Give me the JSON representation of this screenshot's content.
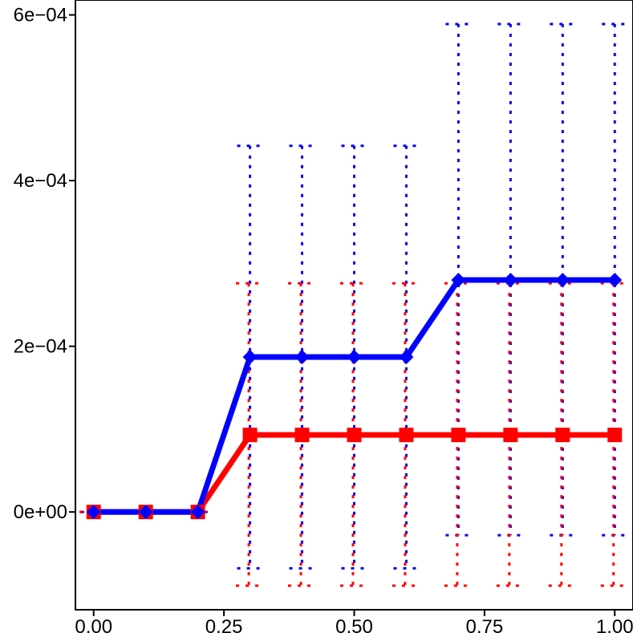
{
  "chart_data": {
    "type": "line",
    "title": "",
    "xlabel": "",
    "ylabel": "",
    "xlim": [
      -0.035,
      1.035
    ],
    "ylim": [
      -0.000118,
      0.000618
    ],
    "xticks": [
      {
        "value": 0.0,
        "label": "0.00"
      },
      {
        "value": 0.25,
        "label": "0.25"
      },
      {
        "value": 0.5,
        "label": "0.50"
      },
      {
        "value": 0.75,
        "label": "0.75"
      },
      {
        "value": 1.0,
        "label": "1.00"
      }
    ],
    "yticks": [
      {
        "value": 0.0,
        "label": "0e+00"
      },
      {
        "value": 0.0002,
        "label": "2e−04"
      },
      {
        "value": 0.0004,
        "label": "4e−04"
      },
      {
        "value": 0.0006,
        "label": "6e−04"
      }
    ],
    "x": [
      0.0,
      0.1,
      0.2,
      0.3,
      0.4,
      0.5,
      0.6,
      0.7,
      0.8,
      0.9,
      1.0
    ],
    "series": [
      {
        "color": "#0000ff",
        "marker": "diamond",
        "values": [
          0.0,
          0.0,
          0.0,
          0.000187,
          0.000187,
          0.000187,
          0.000187,
          0.00028,
          0.00028,
          0.00028,
          0.00028
        ],
        "upper": [
          0.0,
          0.0,
          0.0,
          0.000442,
          0.000442,
          0.000442,
          0.000442,
          0.000589,
          0.000589,
          0.000589,
          0.000589
        ],
        "lower": [
          0.0,
          0.0,
          0.0,
          -6.8e-05,
          -6.8e-05,
          -6.8e-05,
          -6.8e-05,
          -2.8e-05,
          -2.8e-05,
          -2.8e-05,
          -2.8e-05
        ]
      },
      {
        "color": "#ff0000",
        "marker": "square",
        "values": [
          0.0,
          0.0,
          0.0,
          9.3e-05,
          9.3e-05,
          9.3e-05,
          9.3e-05,
          9.3e-05,
          9.3e-05,
          9.3e-05,
          9.3e-05
        ],
        "upper": [
          0.0,
          0.0,
          0.0,
          0.000276,
          0.000276,
          0.000276,
          0.000276,
          0.000276,
          0.000276,
          0.000276,
          0.000276
        ],
        "lower": [
          0.0,
          0.0,
          0.0,
          -8.9e-05,
          -8.9e-05,
          -8.9e-05,
          -8.9e-05,
          -8.9e-05,
          -8.9e-05,
          -8.9e-05,
          -8.9e-05
        ]
      }
    ],
    "grid": false,
    "legend": "none"
  }
}
